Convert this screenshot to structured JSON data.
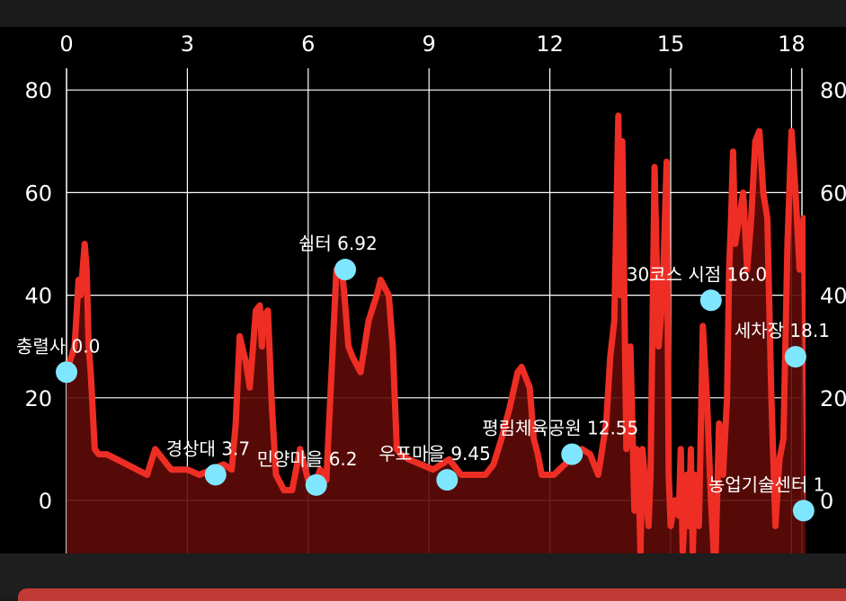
{
  "chart_data": {
    "type": "area",
    "x_ticks": [
      "0",
      "3",
      "6",
      "9",
      "12",
      "15",
      "18"
    ],
    "y_ticks": [
      "0",
      "20",
      "40",
      "60",
      "80"
    ],
    "xlim": [
      -0.2,
      18.5
    ],
    "ylim": [
      -10,
      85
    ],
    "grid": true,
    "colors": {
      "line": "#ee2e24",
      "fill": "#5e0b08",
      "marker": "#7fe6ff",
      "grid": "#ffffff",
      "background": "#000000"
    },
    "series": [
      {
        "x": [
          0,
          0.2,
          0.3,
          0.35,
          0.45,
          0.5,
          0.55,
          0.6,
          0.7,
          0.8,
          0.9,
          1.0,
          1.5,
          2.0,
          2.2,
          2.4,
          2.6,
          2.8,
          3.0,
          3.3,
          3.6,
          3.9,
          4.1,
          4.2,
          4.3,
          4.45,
          4.55,
          4.7,
          4.8,
          4.85,
          4.9,
          5.0,
          5.1,
          5.2,
          5.4,
          5.6,
          5.8,
          6.0,
          6.15,
          6.3,
          6.45,
          6.55,
          6.7,
          6.85,
          6.9,
          7.0,
          7.1,
          7.3,
          7.5,
          7.7,
          7.8,
          8.0,
          8.1,
          8.15,
          8.2,
          8.3,
          8.5,
          8.8,
          9.1,
          9.5,
          9.8,
          10.1,
          10.4,
          10.6,
          10.8,
          11.0,
          11.2,
          11.3,
          11.5,
          11.6,
          11.7,
          11.8,
          12.1,
          12.5,
          12.8,
          13.0,
          13.2,
          13.4,
          13.5,
          13.6,
          13.7,
          13.75,
          13.8,
          13.9,
          14.0,
          14.1,
          14.15,
          14.2,
          14.25,
          14.3,
          14.4,
          14.45,
          14.5,
          14.6,
          14.7,
          14.8,
          14.9,
          14.95,
          15.0,
          15.1,
          15.2,
          15.25,
          15.3,
          15.4,
          15.45,
          15.5,
          15.55,
          15.6,
          15.7,
          15.8,
          15.9,
          16.0,
          16.1,
          16.2,
          16.3,
          16.4,
          16.45,
          16.5,
          16.55,
          16.6,
          16.8,
          16.9,
          17.0,
          17.1,
          17.2,
          17.3,
          17.4,
          17.5,
          17.6,
          17.7,
          17.8,
          17.9,
          18.0,
          18.1,
          18.2,
          18.3,
          18.35,
          18.4
        ],
        "y": [
          25,
          30,
          43,
          40,
          50,
          45,
          30,
          25,
          10,
          9,
          9,
          9,
          7,
          5,
          10,
          8,
          6,
          6,
          6,
          5,
          6,
          7,
          6,
          15,
          32,
          27,
          22,
          37,
          38,
          30,
          36,
          37,
          18,
          5,
          2,
          2,
          10,
          4,
          3,
          6,
          4,
          20,
          45,
          44,
          40,
          30,
          28,
          25,
          35,
          40,
          43,
          40,
          30,
          20,
          10,
          9,
          8,
          7,
          6,
          8,
          5,
          5,
          5,
          7,
          12,
          18,
          25,
          26,
          22,
          12,
          9,
          5,
          5,
          8,
          10,
          9,
          5,
          15,
          28,
          35,
          75,
          40,
          70,
          10,
          30,
          -2,
          10,
          5,
          -10,
          10,
          0,
          -5,
          5,
          65,
          30,
          40,
          66,
          5,
          -5,
          0,
          -3,
          10,
          -10,
          5,
          -5,
          10,
          -10,
          5,
          -5,
          34,
          20,
          0,
          -15,
          15,
          5,
          20,
          45,
          55,
          68,
          50,
          60,
          45,
          55,
          70,
          72,
          60,
          55,
          20,
          -5,
          8,
          12,
          50,
          72,
          60,
          45,
          55,
          30,
          -2
        ]
      }
    ],
    "markers": [
      {
        "x": 0.0,
        "y": 25,
        "label": "충렬사 0.0"
      },
      {
        "x": 3.7,
        "y": 5,
        "label": "경상대 3.7"
      },
      {
        "x": 6.2,
        "y": 3,
        "label": "민양마을 6.2"
      },
      {
        "x": 6.92,
        "y": 45,
        "label": "쉼터 6.92"
      },
      {
        "x": 9.45,
        "y": 4,
        "label": "우포마을 9.45"
      },
      {
        "x": 12.55,
        "y": 9,
        "label": "평림체육공원 12.55"
      },
      {
        "x": 16.0,
        "y": 39,
        "label": "30코스 시점 16.0"
      },
      {
        "x": 18.1,
        "y": 28,
        "label": "세차장 18.1"
      },
      {
        "x": 18.3,
        "y": -2,
        "label": "농업기술센터 1"
      }
    ]
  }
}
